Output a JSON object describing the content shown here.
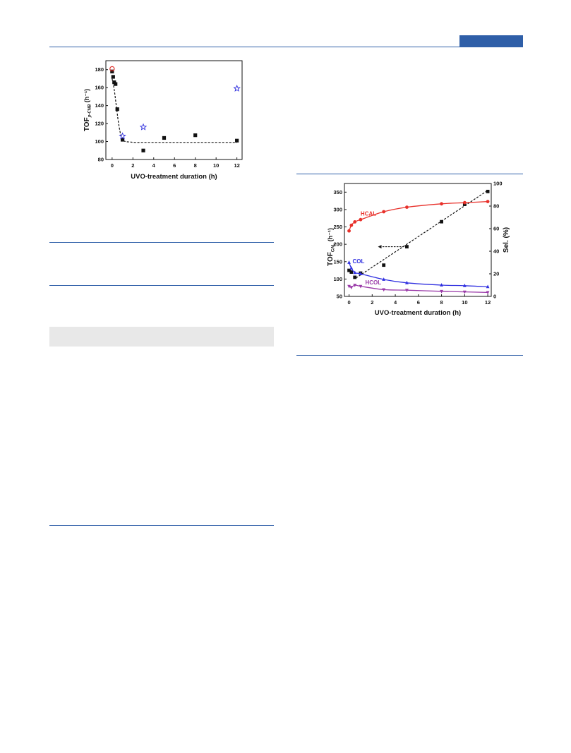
{
  "chart_data": [
    {
      "type": "scatter",
      "title": "",
      "xlabel": "UVO-treatment duration (h)",
      "ylabel_main": "TOF",
      "ylabel_sub": "p-CNB",
      "ylabel_unit": "(h⁻¹)",
      "xlim": [
        -0.6,
        12.5
      ],
      "ylim": [
        80,
        190
      ],
      "xticks": [
        0,
        2,
        4,
        6,
        8,
        10,
        12
      ],
      "yticks": [
        80,
        100,
        120,
        140,
        160,
        180
      ],
      "colors": {
        "squares": "#111111",
        "circle": "#e0302a",
        "stars": "#3a3ae0",
        "fit": "#111111"
      },
      "series": [
        {
          "marker": "square",
          "x": [
            0,
            0.1,
            0.2,
            0.33,
            0.5,
            1,
            3,
            5,
            8,
            12
          ],
          "y": [
            178,
            172,
            166,
            164,
            136,
            102,
            90,
            104,
            107,
            101
          ]
        },
        {
          "marker": "open-circle",
          "x": [
            0
          ],
          "y": [
            181
          ]
        },
        {
          "marker": "open-star",
          "x": [
            1,
            3,
            12
          ],
          "y": [
            106,
            116,
            159
          ]
        }
      ],
      "fit_curve": {
        "style": "dashed",
        "x": [
          0,
          0.2,
          0.4,
          0.6,
          0.8,
          1.0,
          1.3,
          1.7,
          2.2,
          3,
          5,
          8,
          12
        ],
        "y": [
          170,
          158,
          140,
          122,
          109,
          102,
          100,
          99.5,
          99,
          99,
          99,
          99,
          99
        ]
      }
    },
    {
      "type": "line",
      "title": "",
      "xlabel": "UVO-treatment duration (h)",
      "ylabel_main": "TOF",
      "ylabel_sub": "CAL",
      "ylabel_unit": "(h⁻¹)",
      "y2label": "Sel. (%)",
      "xlim": [
        -0.4,
        12.3
      ],
      "ylim": [
        50,
        375
      ],
      "y2lim": [
        0,
        100
      ],
      "xticks": [
        0,
        2,
        4,
        6,
        8,
        10,
        12
      ],
      "yticks": [
        50,
        100,
        150,
        200,
        250,
        300,
        350
      ],
      "y2ticks": [
        0,
        20,
        40,
        60,
        80,
        100
      ],
      "colors": {
        "tof": "#111111",
        "HCAL": "#e8302a",
        "COL": "#3030e0",
        "HCOL": "#9a3aa8"
      },
      "series": [
        {
          "name": "TOF",
          "axis": "left",
          "marker": "square",
          "x": [
            0,
            0.2,
            0.5,
            1,
            3,
            5,
            8,
            10,
            12
          ],
          "y": [
            125,
            120,
            105,
            117,
            140,
            193,
            265,
            315,
            352
          ]
        },
        {
          "name": "HCAL",
          "axis": "right",
          "marker": "circle",
          "x": [
            0,
            0.2,
            0.5,
            1,
            3,
            5,
            8,
            10,
            12
          ],
          "y": [
            58,
            63,
            66,
            68,
            75,
            79,
            82,
            83,
            84
          ]
        },
        {
          "name": "COL",
          "axis": "right",
          "marker": "triangle-up",
          "x": [
            0,
            0.2,
            0.5,
            1,
            3,
            5,
            8,
            10,
            12
          ],
          "y": [
            30,
            25,
            21,
            20,
            15,
            12,
            10,
            9.5,
            8.5
          ]
        },
        {
          "name": "HCOL",
          "axis": "right",
          "marker": "triangle-down",
          "x": [
            0,
            0.2,
            0.5,
            1,
            3,
            5,
            8,
            10,
            12
          ],
          "y": [
            9,
            8,
            10,
            9,
            6,
            5.5,
            4.5,
            4,
            3.5
          ]
        }
      ],
      "tof_trend": [
        [
          0.6,
          103
        ],
        [
          12,
          355
        ]
      ],
      "arrow": {
        "from": [
          5,
          193
        ],
        "to": [
          2.5,
          193
        ]
      }
    }
  ]
}
